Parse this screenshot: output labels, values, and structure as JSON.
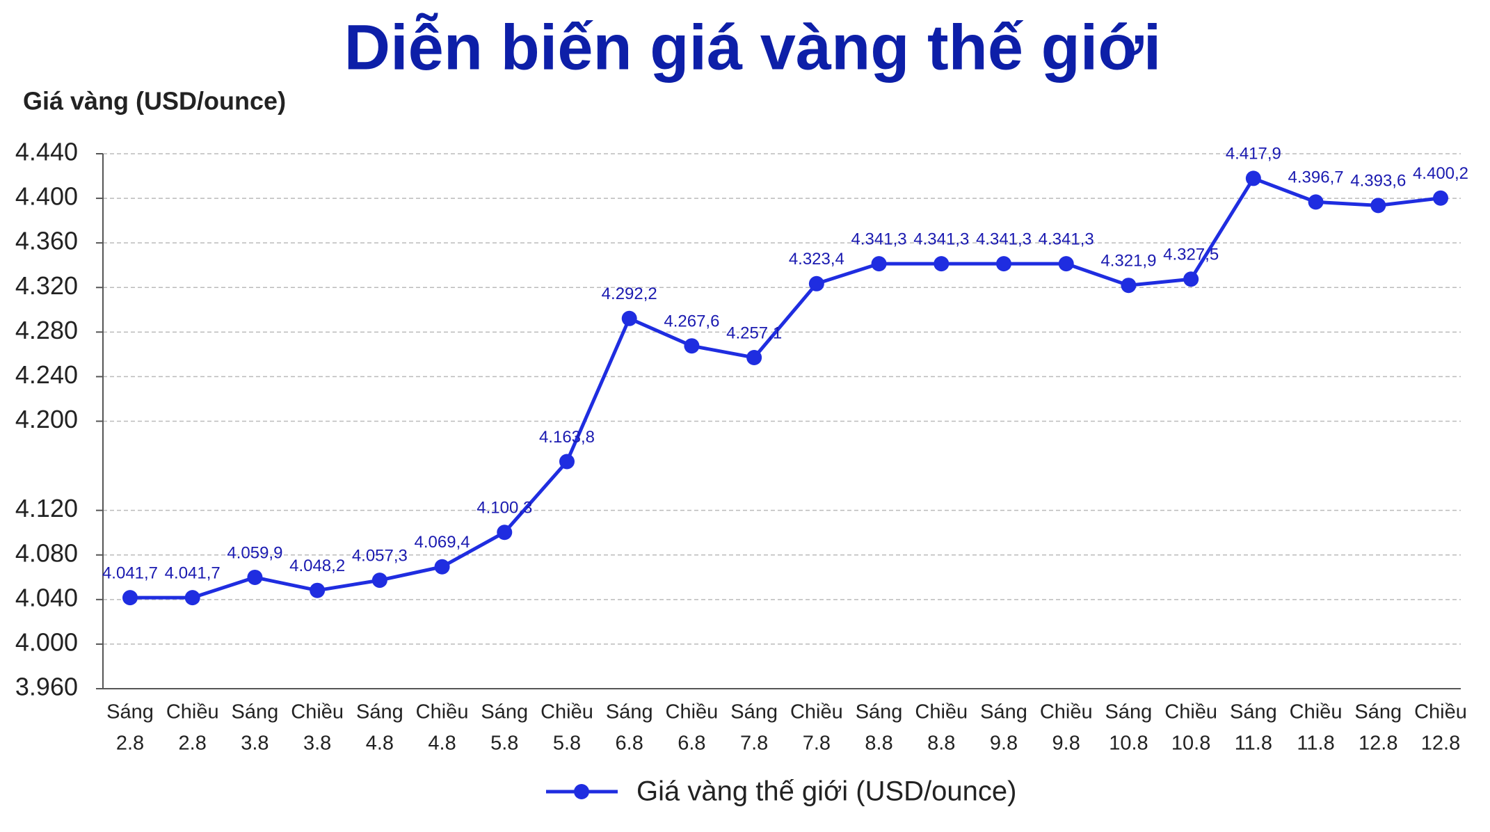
{
  "chart_data": {
    "type": "line",
    "title": "Diễn biến giá vàng thế giới",
    "y_label": "Giá vàng (USD/ounce)",
    "categories": [
      [
        "Sáng",
        "2.8"
      ],
      [
        "Chiều",
        "2.8"
      ],
      [
        "Sáng",
        "3.8"
      ],
      [
        "Chiều",
        "3.8"
      ],
      [
        "Sáng",
        "4.8"
      ],
      [
        "Chiều",
        "4.8"
      ],
      [
        "Sáng",
        "5.8"
      ],
      [
        "Chiều",
        "5.8"
      ],
      [
        "Sáng",
        "6.8"
      ],
      [
        "Chiều",
        "6.8"
      ],
      [
        "Sáng",
        "7.8"
      ],
      [
        "Chiều",
        "7.8"
      ],
      [
        "Sáng",
        "8.8"
      ],
      [
        "Chiều",
        "8.8"
      ],
      [
        "Sáng",
        "9.8"
      ],
      [
        "Chiều",
        "9.8"
      ],
      [
        "Sáng",
        "10.8"
      ],
      [
        "Chiều",
        "10.8"
      ],
      [
        "Sáng",
        "11.8"
      ],
      [
        "Chiều",
        "11.8"
      ],
      [
        "Sáng",
        "12.8"
      ],
      [
        "Chiều",
        "12.8"
      ]
    ],
    "series": [
      {
        "name": "Giá vàng thế giới (USD/ounce)",
        "color": "#1f2de0",
        "values": [
          4041.7,
          4041.7,
          4059.9,
          4048.2,
          4057.3,
          4069.4,
          4100.3,
          4163.8,
          4292.2,
          4267.6,
          4257.1,
          4323.4,
          4341.3,
          4341.3,
          4341.3,
          4341.3,
          4321.9,
          4327.5,
          4417.9,
          4396.7,
          4393.6,
          4400.2
        ],
        "value_labels": [
          "4.041,7",
          "4.041,7",
          "4.059,9",
          "4.048,2",
          "4.057,3",
          "4.069,4",
          "4.100,3",
          "4.163,8",
          "4.292,2",
          "4.267,6",
          "4.257,1",
          "4.323,4",
          "4.341,3",
          "4.341,3",
          "4.341,3",
          "4.341,3",
          "4.321,9",
          "4.327,5",
          "4.417,9",
          "4.396,7",
          "4.393,6",
          "4.400,2"
        ]
      }
    ],
    "ylim": [
      3960,
      4440
    ],
    "yticks": [
      {
        "value": 3960,
        "label": "3.960"
      },
      {
        "value": 4000,
        "label": "4.000"
      },
      {
        "value": 4040,
        "label": "4.040"
      },
      {
        "value": 4080,
        "label": "4.080"
      },
      {
        "value": 4120,
        "label": "4.120"
      },
      {
        "value": 4200,
        "label": "4.200"
      },
      {
        "value": 4240,
        "label": "4.240"
      },
      {
        "value": 4280,
        "label": "4.280"
      },
      {
        "value": 4320,
        "label": "4.320"
      },
      {
        "value": 4360,
        "label": "4.360"
      },
      {
        "value": 4400,
        "label": "4.400"
      },
      {
        "value": 4440,
        "label": "4.440"
      }
    ],
    "grid": true,
    "legend": "bottom"
  }
}
